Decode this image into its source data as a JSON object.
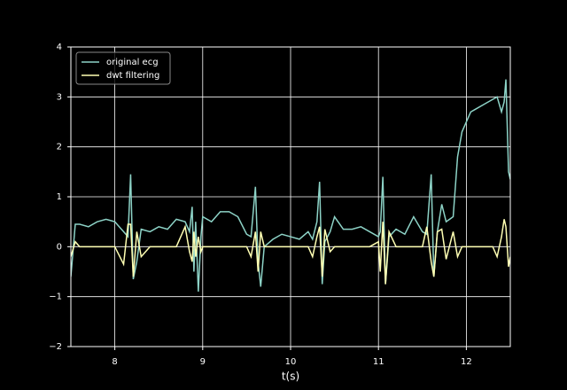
{
  "chart_data": {
    "type": "line",
    "x_label": "t(s)",
    "x": [
      7.5,
      7.55,
      7.6,
      7.7,
      7.8,
      7.9,
      8.0,
      8.1,
      8.15,
      8.18,
      8.21,
      8.25,
      8.3,
      8.4,
      8.5,
      8.6,
      8.7,
      8.8,
      8.85,
      8.88,
      8.9,
      8.92,
      8.95,
      8.98,
      9.0,
      9.1,
      9.2,
      9.3,
      9.4,
      9.5,
      9.55,
      9.6,
      9.63,
      9.66,
      9.7,
      9.8,
      9.9,
      10.0,
      10.1,
      10.2,
      10.25,
      10.3,
      10.33,
      10.36,
      10.39,
      10.45,
      10.5,
      10.6,
      10.7,
      10.8,
      10.9,
      11.0,
      11.02,
      11.05,
      11.08,
      11.12,
      11.2,
      11.3,
      11.4,
      11.5,
      11.55,
      11.6,
      11.63,
      11.67,
      11.72,
      11.77,
      11.85,
      11.9,
      11.95,
      12.0,
      12.05,
      12.1,
      12.2,
      12.3,
      12.35,
      12.4,
      12.43,
      12.45,
      12.48,
      12.5
    ],
    "series": [
      {
        "name": "original ecg",
        "color": "#8dd3c7",
        "values": [
          -0.6,
          0.45,
          0.45,
          0.4,
          0.5,
          0.55,
          0.5,
          0.3,
          0.2,
          1.45,
          -0.65,
          -0.3,
          0.35,
          0.3,
          0.4,
          0.35,
          0.55,
          0.5,
          0.3,
          0.8,
          -0.5,
          0.5,
          -0.9,
          0.2,
          0.6,
          0.5,
          0.7,
          0.7,
          0.6,
          0.25,
          0.2,
          1.2,
          -0.3,
          -0.8,
          0,
          0.15,
          0.25,
          0.2,
          0.15,
          0.3,
          0.15,
          0.5,
          1.3,
          -0.75,
          0.1,
          0.3,
          0.6,
          0.35,
          0.35,
          0.4,
          0.3,
          0.2,
          0.3,
          1.4,
          -0.75,
          0.2,
          0.35,
          0.25,
          0.6,
          0.3,
          0.25,
          1.45,
          -0.6,
          0.3,
          0.85,
          0.5,
          0.6,
          1.8,
          2.3,
          2.5,
          2.7,
          2.75,
          2.85,
          2.95,
          3.0,
          2.7,
          2.9,
          3.35,
          1.5,
          1.35
        ]
      },
      {
        "name": "dwt filtering",
        "color": "#ffffb3",
        "values": [
          -0.2,
          0.1,
          0,
          0,
          0,
          0,
          0,
          -0.35,
          0.45,
          0.45,
          -0.6,
          0.3,
          -0.2,
          0,
          0,
          0,
          0,
          0.4,
          -0.1,
          -0.3,
          0.3,
          -0.2,
          0.2,
          -0.1,
          0,
          0,
          0,
          0,
          0,
          0,
          -0.2,
          0.3,
          -0.5,
          0.3,
          0,
          0,
          0,
          0,
          0,
          0,
          -0.2,
          0.2,
          0.4,
          -0.6,
          0.35,
          -0.1,
          0,
          0,
          0,
          0,
          0,
          0.1,
          -0.5,
          0.5,
          -0.75,
          0.3,
          0,
          0,
          0,
          0,
          0.4,
          -0.3,
          -0.6,
          0.3,
          0.35,
          -0.25,
          0.3,
          -0.2,
          0,
          0,
          0,
          0,
          0,
          0,
          -0.2,
          0.2,
          0.55,
          0.4,
          -0.4,
          -0.2
        ]
      }
    ],
    "xlim": [
      7.5,
      12.5
    ],
    "xticks": [
      8,
      9,
      10,
      11,
      12
    ],
    "ylim": [
      -2,
      4
    ],
    "yticks": [
      {
        "value": -2,
        "label": "−2"
      },
      {
        "value": -1,
        "label": "−1"
      },
      0,
      1,
      2,
      3,
      4
    ],
    "grid": true,
    "legend": "upper-left"
  }
}
